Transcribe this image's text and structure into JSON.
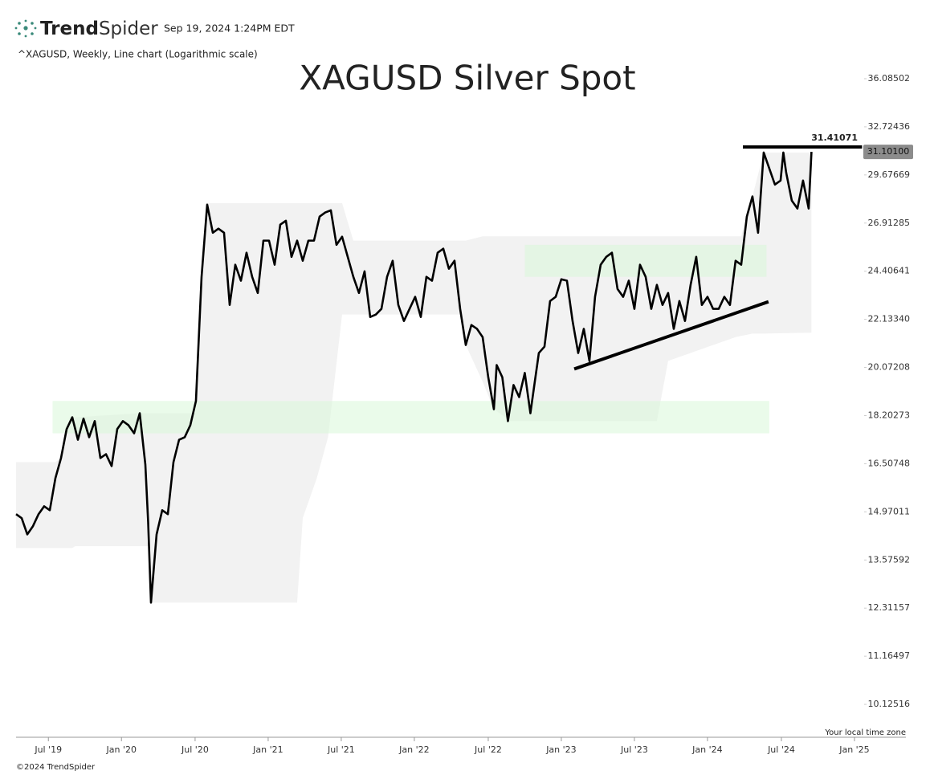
{
  "header": {
    "brand": {
      "bold": "Trend",
      "light": "Spider"
    },
    "timestamp": "Sep 19, 2024 1:24PM EDT",
    "info": "^XAGUSD, Weekly, Line chart (Logarithmic scale)"
  },
  "chart_data": {
    "type": "line",
    "title": "XAGUSD Silver Spot",
    "log_scale": true,
    "series": [
      {
        "color": "#000000",
        "x": [
          0,
          2,
          4,
          6,
          8,
          10,
          12,
          14,
          16,
          18,
          20,
          22,
          24,
          26,
          28,
          30,
          32,
          34,
          36,
          38,
          40,
          42,
          44,
          46,
          47,
          48,
          50,
          52,
          54,
          56,
          58,
          60,
          62,
          64,
          66,
          68,
          70,
          72,
          74,
          76,
          78,
          80,
          82,
          84,
          86,
          88,
          90,
          92,
          94,
          96,
          98,
          100,
          102,
          104,
          106,
          108,
          110,
          112,
          114,
          116,
          118,
          120,
          122,
          124,
          126,
          128,
          130,
          132,
          134,
          136,
          138,
          140,
          142,
          144,
          146,
          148,
          150,
          152,
          154,
          156,
          158,
          160,
          162,
          164,
          166,
          168,
          170,
          171,
          173,
          175,
          177,
          179,
          181,
          183,
          184,
          186,
          188,
          190,
          192,
          194,
          196,
          198,
          200,
          202,
          204,
          206,
          208,
          210,
          212,
          214,
          216,
          218,
          220,
          222,
          224,
          226,
          228,
          230,
          232,
          234,
          236,
          238,
          240,
          242,
          244,
          246,
          248,
          250,
          252,
          254,
          256,
          258,
          260,
          262,
          264,
          266,
          268,
          270,
          272,
          273,
          274,
          276,
          278,
          280,
          282,
          283
        ],
        "values": [
          14.9,
          14.78,
          14.3,
          14.54,
          14.9,
          15.14,
          15.02,
          16.03,
          16.7,
          17.71,
          18.14,
          17.33,
          18.09,
          17.42,
          18.0,
          16.7,
          16.83,
          16.43,
          17.71,
          18.0,
          17.85,
          17.56,
          18.29,
          16.48,
          14.66,
          12.45,
          14.3,
          15.02,
          14.9,
          16.56,
          17.33,
          17.42,
          17.85,
          18.75,
          24.13,
          27.94,
          26.39,
          26.61,
          26.39,
          22.79,
          24.73,
          23.94,
          25.34,
          24.13,
          23.35,
          25.97,
          25.97,
          24.73,
          26.83,
          27.04,
          25.13,
          25.97,
          24.93,
          25.97,
          25.97,
          27.27,
          27.5,
          27.62,
          25.75,
          26.18,
          25.13,
          24.13,
          23.35,
          24.4,
          22.24,
          22.35,
          22.61,
          24.13,
          24.93,
          22.79,
          22.06,
          22.61,
          23.17,
          22.24,
          24.13,
          23.94,
          25.34,
          25.55,
          24.53,
          24.93,
          22.61,
          21.01,
          21.88,
          21.71,
          21.35,
          19.68,
          18.44,
          20.17,
          19.68,
          18.0,
          19.37,
          18.9,
          19.85,
          18.29,
          19.06,
          20.67,
          20.94,
          22.97,
          23.17,
          24.01,
          23.94,
          22.06,
          20.67,
          21.71,
          20.34,
          23.17,
          24.73,
          25.13,
          25.34,
          23.54,
          23.17,
          23.94,
          22.61,
          24.73,
          24.13,
          22.61,
          23.74,
          22.79,
          23.35,
          21.71,
          22.97,
          22.06,
          23.74,
          25.13,
          22.79,
          23.17,
          22.61,
          22.61,
          23.17,
          22.79,
          24.93,
          24.73,
          27.27,
          28.41,
          26.39,
          31.06,
          30.07,
          29.1,
          29.34,
          31.06,
          29.82,
          28.17,
          27.72,
          29.34,
          27.72,
          31.101
        ]
      }
    ],
    "band": {
      "color": "#f2f2f2",
      "x": [
        0,
        7,
        14,
        16,
        18,
        20,
        21,
        44,
        46,
        47,
        48,
        64,
        66,
        68,
        100,
        102,
        107,
        111,
        116,
        120,
        158,
        160,
        166,
        170,
        176,
        228,
        232,
        256,
        258,
        260,
        262,
        266,
        283
      ],
      "upper": [
        16.56,
        16.56,
        16.56,
        16.7,
        17.71,
        18.14,
        18.14,
        18.29,
        18.29,
        18.29,
        18.29,
        18.29,
        24.13,
        28.03,
        28.03,
        28.03,
        28.03,
        28.03,
        28.03,
        25.97,
        25.97,
        25.97,
        26.2,
        26.2,
        26.2,
        26.2,
        26.2,
        26.2,
        26.2,
        27.27,
        28.41,
        31.06,
        31.06
      ],
      "lower": [
        13.91,
        13.91,
        13.91,
        13.91,
        13.91,
        13.91,
        13.96,
        13.96,
        13.96,
        13.96,
        12.45,
        12.45,
        12.45,
        12.45,
        12.45,
        14.78,
        16.03,
        17.42,
        22.35,
        22.35,
        22.35,
        21.01,
        19.5,
        18.44,
        18.0,
        18.0,
        20.34,
        21.35,
        21.4,
        21.45,
        21.5,
        21.5,
        21.54
      ]
    },
    "zones": [
      {
        "color": "#d9f7d9",
        "top": 18.75,
        "bottom": 17.56,
        "x": [
          13,
          268
        ]
      },
      {
        "color": "#d9f7d9",
        "top": 25.75,
        "bottom": 24.13,
        "x": [
          181,
          267
        ]
      }
    ],
    "trendline": {
      "color": "#000000",
      "x": [
        198.6,
        267.7
      ],
      "y": [
        20.01,
        22.94
      ]
    },
    "resistance": {
      "value": 31.41071,
      "color": "#000000",
      "x": [
        258.6,
        301
      ]
    },
    "last_price": {
      "value": 31.101,
      "label": "31.10100"
    },
    "xlim": [
      0,
      316.6
    ],
    "ylim": [
      9.471,
      37.159
    ],
    "xticks": [
      {
        "value": 11.5,
        "label": "Jul '19"
      },
      {
        "value": 37.5,
        "label": "Jan '20"
      },
      {
        "value": 63.7,
        "label": "Jul '20"
      },
      {
        "value": 89.7,
        "label": "Jan '21"
      },
      {
        "value": 115.7,
        "label": "Jul '21"
      },
      {
        "value": 141.7,
        "label": "Jan '22"
      },
      {
        "value": 168,
        "label": "Jul '22"
      },
      {
        "value": 194,
        "label": "Jan '23"
      },
      {
        "value": 220,
        "label": "Jul '23"
      },
      {
        "value": 246,
        "label": "Jan '24"
      },
      {
        "value": 272.3,
        "label": "Jul '24"
      },
      {
        "value": 298.3,
        "label": "Jan '25"
      }
    ],
    "yticks": [
      36.08502,
      32.72436,
      29.67669,
      26.91285,
      24.40641,
      {
        "value": 22.1334,
        "label": "22.13340"
      },
      20.07208,
      18.20273,
      16.50748,
      14.97011,
      13.57592,
      12.31157,
      11.16497,
      10.12516
    ],
    "timezone_note": "Your local time zone",
    "copyright": "©2024 TrendSpider"
  }
}
